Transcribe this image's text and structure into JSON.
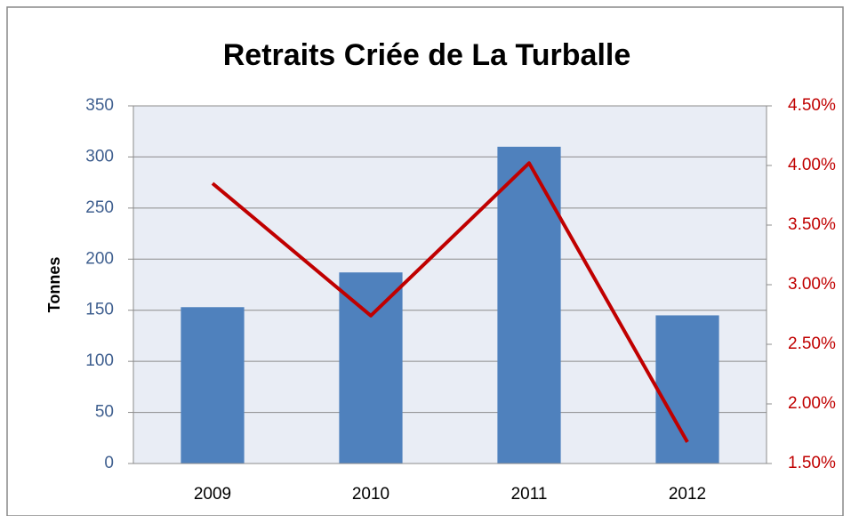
{
  "chart_data": {
    "type": "bar",
    "title": "Retraits  Criée de La Turballe",
    "y_label": "Tonnes",
    "categories": [
      "2009",
      "2010",
      "2011",
      "2012"
    ],
    "series": [
      {
        "type": "bar",
        "color": "#4f81bd",
        "values": [
          153,
          187,
          310,
          145
        ]
      },
      {
        "type": "line",
        "axis": "y2",
        "color": "#c00000",
        "values": [
          3.85,
          2.74,
          4.02,
          1.68
        ]
      }
    ],
    "ylim": [
      0,
      350
    ],
    "yticks": [
      0,
      50,
      100,
      150,
      200,
      250,
      300,
      350
    ],
    "y2lim": [
      1.5,
      4.5
    ],
    "y2ticks": [
      {
        "value": 1.5,
        "label": "1.50%"
      },
      {
        "value": 2.0,
        "label": "2.00%"
      },
      {
        "value": 2.5,
        "label": "2.50%"
      },
      {
        "value": 3.0,
        "label": "3.00%"
      },
      {
        "value": 3.5,
        "label": "3.50%"
      },
      {
        "value": 4.0,
        "label": "4.00%"
      },
      {
        "value": 4.5,
        "label": "4.50%"
      }
    ],
    "grid": true
  }
}
